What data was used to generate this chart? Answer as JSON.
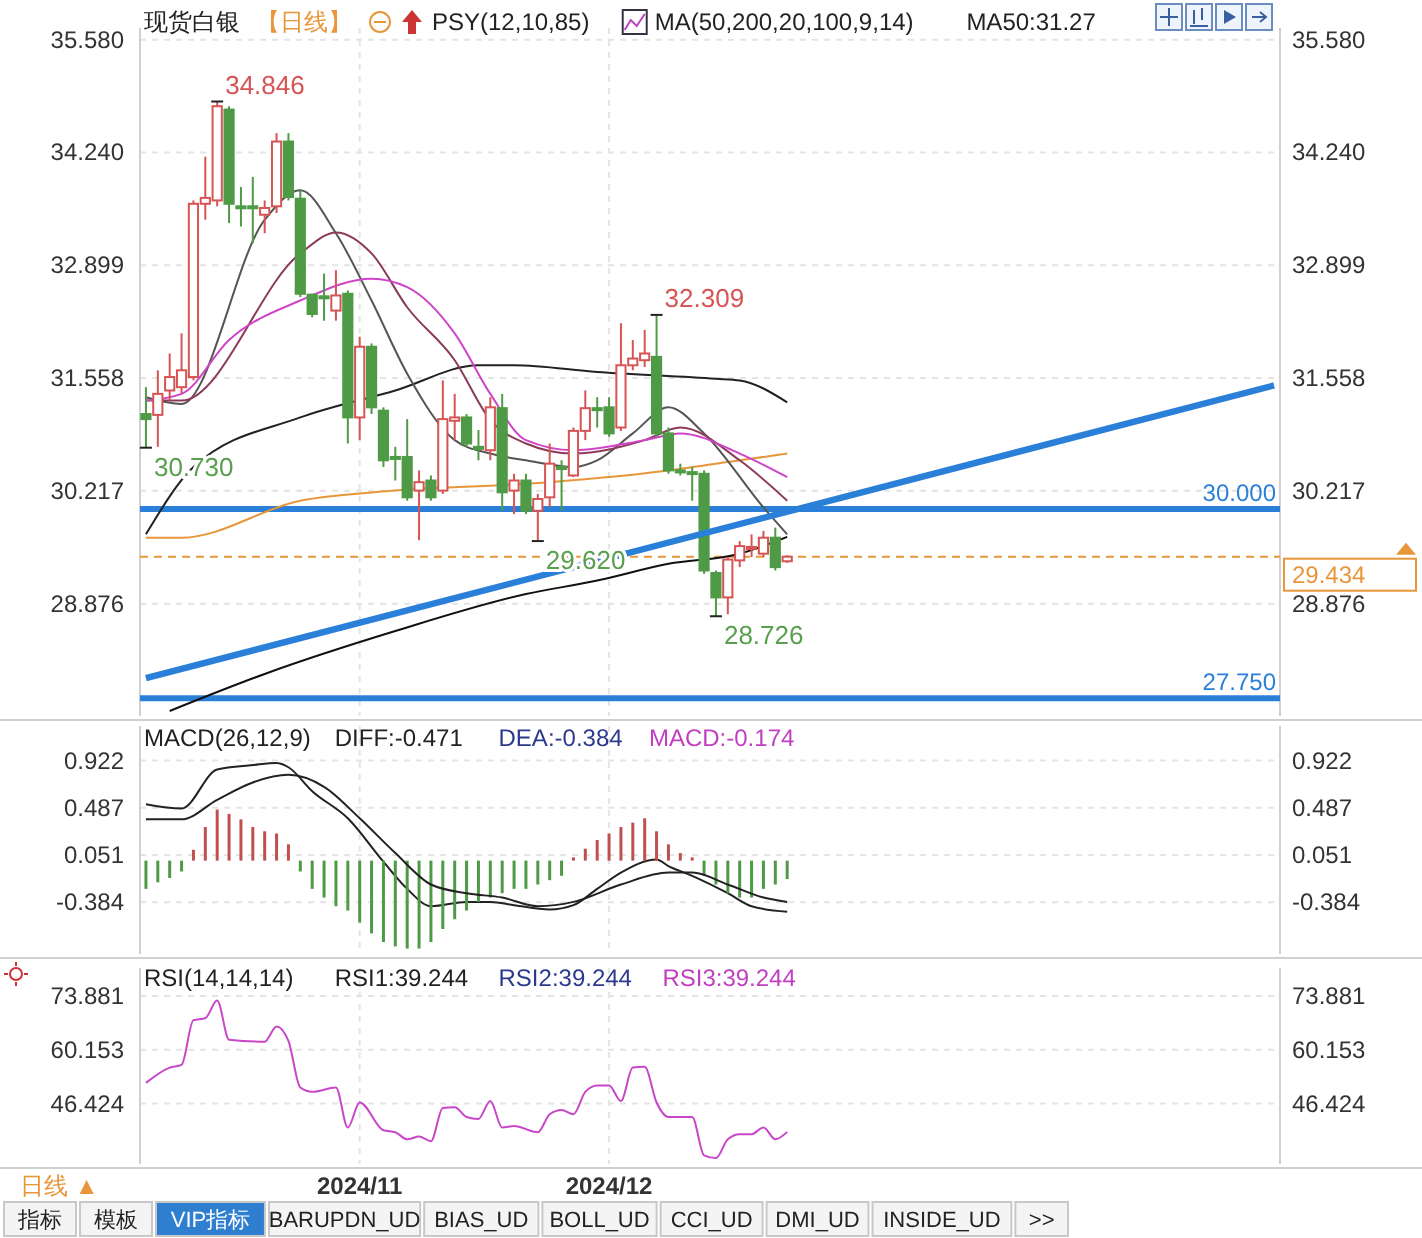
{
  "chart_data": [
    {
      "type": "candlestick",
      "title": "现货白银",
      "subtitle": "【日线】",
      "annotations": [
        "PSY(12,10,85)",
        "MA(50,200,20,100,9,14)",
        "MA50:31.27",
        "34.846",
        "32.309",
        "30.730",
        "29.620",
        "28.726"
      ],
      "categories": [
        null,
        null,
        null,
        null,
        null,
        null,
        null,
        null,
        null,
        null,
        null,
        null,
        null,
        null,
        null,
        null,
        null,
        null,
        "2024/11",
        null,
        null,
        null,
        null,
        null,
        null,
        null,
        null,
        null,
        null,
        null,
        null,
        null,
        null,
        null,
        null,
        null,
        null,
        null,
        null,
        "2024/12",
        null,
        null,
        null,
        null,
        null,
        null,
        null,
        null,
        null,
        null,
        null,
        null,
        null,
        null,
        null,
        null,
        null,
        null,
        null,
        null,
        null,
        null,
        null,
        null,
        null,
        null,
        null,
        null,
        null,
        null,
        null,
        null,
        null,
        null,
        null,
        null,
        null,
        null,
        null,
        null,
        null,
        null,
        null,
        null,
        null,
        null,
        null,
        null,
        null,
        null,
        null,
        null,
        null,
        null,
        null,
        null
      ],
      "ohlc": [
        [
          31.13,
          31.45,
          30.73,
          31.07
        ],
        [
          31.12,
          31.65,
          30.74,
          31.37
        ],
        [
          31.41,
          31.85,
          31.29,
          31.57
        ],
        [
          31.45,
          32.09,
          31.37,
          31.65
        ],
        [
          31.57,
          33.67,
          31.53,
          33.63
        ],
        [
          33.63,
          34.19,
          33.44,
          33.7
        ],
        [
          33.67,
          34.846,
          33.6,
          34.79
        ],
        [
          34.75,
          34.79,
          33.4,
          33.63
        ],
        [
          33.6,
          33.83,
          33.36,
          33.58
        ],
        [
          33.6,
          33.95,
          33.16,
          33.59
        ],
        [
          33.5,
          33.67,
          33.28,
          33.58
        ],
        [
          33.6,
          34.47,
          33.52,
          34.37
        ],
        [
          34.37,
          34.47,
          33.67,
          33.71
        ],
        [
          33.69,
          33.79,
          32.52,
          32.56
        ],
        [
          32.55,
          32.56,
          32.28,
          32.32
        ],
        [
          32.53,
          32.8,
          32.24,
          32.51
        ],
        [
          32.36,
          32.84,
          32.24,
          32.54
        ],
        [
          32.56,
          32.6,
          30.78,
          31.09
        ],
        [
          31.09,
          32.05,
          30.82,
          31.93
        ],
        [
          31.93,
          31.97,
          31.13,
          31.21
        ],
        [
          31.17,
          31.21,
          30.5,
          30.58
        ],
        [
          30.62,
          30.74,
          30.34,
          30.6
        ],
        [
          30.62,
          31.07,
          30.1,
          30.14
        ],
        [
          30.22,
          30.46,
          29.63,
          30.32
        ],
        [
          30.34,
          30.4,
          30.1,
          30.14
        ],
        [
          30.22,
          31.53,
          30.18,
          31.07
        ],
        [
          31.05,
          31.37,
          30.82,
          31.09
        ],
        [
          31.09,
          31.13,
          30.74,
          30.78
        ],
        [
          30.74,
          30.94,
          30.58,
          30.72
        ],
        [
          30.7,
          31.33,
          30.58,
          31.21
        ],
        [
          31.2,
          31.37,
          29.98,
          30.2
        ],
        [
          30.22,
          30.42,
          29.94,
          30.34
        ],
        [
          30.34,
          30.42,
          29.94,
          29.98
        ],
        [
          29.98,
          30.18,
          29.62,
          30.12
        ],
        [
          30.14,
          30.78,
          30.02,
          30.54
        ],
        [
          30.5,
          30.58,
          29.98,
          30.48
        ],
        [
          30.4,
          30.97,
          30.38,
          30.93
        ],
        [
          30.93,
          31.41,
          30.82,
          31.2
        ],
        [
          31.2,
          31.33,
          30.97,
          31.19
        ],
        [
          31.21,
          31.33,
          30.86,
          30.9
        ],
        [
          30.97,
          32.21,
          30.93,
          31.71
        ],
        [
          31.71,
          32.01,
          31.65,
          31.79
        ],
        [
          31.77,
          32.13,
          31.69,
          31.85
        ],
        [
          31.81,
          32.309,
          30.86,
          30.9
        ],
        [
          30.9,
          30.97,
          30.42,
          30.46
        ],
        [
          30.46,
          30.54,
          30.4,
          30.45
        ],
        [
          30.44,
          30.5,
          30.1,
          30.42
        ],
        [
          30.42,
          30.46,
          29.23,
          29.27
        ],
        [
          29.24,
          29.27,
          28.726,
          28.95
        ],
        [
          28.95,
          29.43,
          28.75,
          29.4
        ],
        [
          29.39,
          29.62,
          29.31,
          29.56
        ],
        [
          29.54,
          29.7,
          29.43,
          29.55
        ],
        [
          29.47,
          29.74,
          29.43,
          29.66
        ],
        [
          29.66,
          29.78,
          29.27,
          29.31
        ],
        [
          29.38,
          29.45,
          29.36,
          29.434
        ],
        null,
        null,
        null,
        null,
        null,
        null,
        null,
        null,
        null,
        null,
        null,
        null,
        null,
        null,
        null,
        null,
        null,
        null,
        null,
        null,
        null,
        null,
        null,
        null,
        null,
        null,
        null,
        null,
        null,
        null,
        null,
        null,
        null,
        null,
        null,
        null,
        null,
        null,
        null,
        null,
        null
      ],
      "colors": [
        "#4f9a46",
        "#d65454",
        "#d65454",
        "#d65454",
        "#d65454",
        "#d65454",
        "#d65454",
        "#4f9a46",
        "#4f9a46",
        "#4f9a46",
        "#d65454",
        "#d65454",
        "#4f9a46",
        "#4f9a46",
        "#4f9a46",
        "#4f9a46",
        "#d65454",
        "#4f9a46",
        "#d65454",
        "#4f9a46",
        "#4f9a46",
        "#4f9a46",
        "#4f9a46",
        "#d65454",
        "#4f9a46",
        "#d65454",
        "#d65454",
        "#4f9a46",
        "#4f9a46",
        "#d65454",
        "#4f9a46",
        "#d65454",
        "#4f9a46",
        "#d65454",
        "#d65454",
        "#4f9a46",
        "#d65454",
        "#d65454",
        "#4f9a46",
        "#4f9a46",
        "#d65454",
        "#d65454",
        "#d65454",
        "#4f9a46",
        "#4f9a46",
        "#4f9a46",
        "#4f9a46",
        "#4f9a46",
        "#4f9a46",
        "#d65454",
        "#d65454",
        "#d65454",
        "#d65454",
        "#4f9a46",
        "#d65454",
        null,
        null,
        null,
        null,
        null,
        null,
        null,
        null,
        null,
        null,
        null,
        null,
        null,
        null,
        null,
        null,
        null,
        null,
        null,
        null,
        null,
        null,
        null,
        null,
        null,
        null,
        null,
        null,
        null,
        null,
        null,
        null,
        null,
        null,
        null,
        null,
        null,
        null,
        null,
        null,
        null
      ],
      "series": [
        {
          "type": "line",
          "color": "#222222",
          "values": [
            29.7,
            null,
            null,
            null,
            30.5,
            null,
            null,
            null,
            null,
            null,
            null,
            null,
            null,
            31.09,
            null,
            null,
            null,
            null,
            null,
            null,
            null,
            31.41,
            null,
            null,
            null,
            null,
            null,
            null,
            31.71,
            null,
            null,
            31.71,
            null,
            null,
            null,
            null,
            null,
            null,
            31.63,
            null,
            null,
            null,
            null,
            null,
            null,
            null,
            null,
            null,
            31.55,
            null,
            31.53,
            null,
            null,
            null,
            31.27,
            null,
            null,
            null,
            null,
            null,
            null,
            null,
            null,
            null,
            null,
            null,
            null,
            null,
            null,
            null,
            null,
            null,
            null,
            null,
            null,
            null,
            null,
            null,
            null,
            null,
            null,
            null,
            null,
            null,
            null,
            null,
            null,
            null,
            null,
            null,
            null,
            null,
            null,
            null,
            null,
            null
          ]
        },
        {
          "type": "line",
          "color": "#111111",
          "values": [
            null,
            null,
            27.6,
            null,
            null,
            null,
            null,
            null,
            null,
            null,
            28.04,
            null,
            null,
            null,
            null,
            null,
            null,
            null,
            null,
            null,
            null,
            28.55,
            null,
            null,
            null,
            null,
            null,
            null,
            null,
            null,
            null,
            null,
            28.99,
            null,
            null,
            null,
            null,
            null,
            29.15,
            null,
            null,
            null,
            null,
            null,
            29.35,
            null,
            null,
            null,
            null,
            null,
            29.47,
            null,
            null,
            null,
            29.67,
            null,
            null,
            null,
            null,
            null,
            null,
            null,
            null,
            null,
            null,
            null,
            null,
            null,
            null,
            null,
            null,
            null,
            null,
            null,
            null,
            null,
            null,
            null,
            null,
            null,
            null,
            null,
            null,
            null,
            null,
            null,
            null,
            null,
            null,
            null,
            null,
            null,
            null,
            null,
            null,
            null
          ]
        },
        {
          "type": "line",
          "color": "#e8963a",
          "values": [
            29.66,
            null,
            null,
            29.66,
            null,
            null,
            null,
            null,
            null,
            null,
            null,
            null,
            null,
            30.1,
            null,
            null,
            null,
            null,
            null,
            null,
            null,
            30.22,
            null,
            null,
            null,
            null,
            null,
            null,
            null,
            null,
            null,
            null,
            30.3,
            null,
            null,
            null,
            null,
            null,
            null,
            null,
            null,
            null,
            null,
            null,
            30.46,
            null,
            null,
            null,
            null,
            null,
            30.58,
            null,
            null,
            null,
            30.66,
            null,
            null,
            null,
            null,
            null,
            null,
            null,
            null,
            null,
            null,
            null,
            null,
            null,
            null,
            null,
            null,
            null,
            null,
            null,
            null,
            null,
            null,
            null,
            null,
            null,
            null,
            null,
            null,
            null,
            null,
            null,
            null,
            null,
            null,
            null,
            null,
            null,
            null,
            null,
            null,
            null
          ]
        },
        {
          "type": "line",
          "color": "#555555",
          "values": [
            31.33,
            null,
            null,
            31.25,
            null,
            null,
            null,
            null,
            null,
            null,
            33.44,
            null,
            null,
            33.79,
            null,
            null,
            33.28,
            null,
            null,
            32.48,
            null,
            null,
            31.61,
            null,
            null,
            null,
            30.82,
            null,
            null,
            30.66,
            null,
            null,
            30.58,
            null,
            null,
            null,
            30.5,
            null,
            30.58,
            null,
            null,
            30.9,
            null,
            null,
            31.21,
            null,
            null,
            30.9,
            null,
            null,
            null,
            null,
            30.02,
            null,
            29.7,
            null,
            null,
            null,
            null,
            null,
            null,
            null,
            null,
            null,
            null,
            null,
            null,
            null,
            null,
            null,
            null,
            null,
            null,
            null,
            null,
            null,
            null,
            null,
            null,
            null,
            null,
            null,
            null,
            null,
            null,
            null,
            null,
            null,
            null,
            null,
            null,
            null,
            null,
            null,
            null,
            null
          ]
        },
        {
          "type": "line",
          "color": "#8b3a5a",
          "values": [
            31.29,
            null,
            null,
            31.29,
            null,
            null,
            null,
            null,
            null,
            null,
            null,
            null,
            null,
            33.04,
            null,
            null,
            33.29,
            null,
            null,
            33.04,
            null,
            null,
            32.4,
            null,
            null,
            null,
            31.77,
            null,
            null,
            31.06,
            null,
            null,
            30.78,
            null,
            null,
            null,
            30.66,
            null,
            null,
            null,
            null,
            null,
            30.82,
            null,
            null,
            30.97,
            null,
            null,
            null,
            null,
            30.58,
            null,
            null,
            null,
            30.1,
            null,
            null,
            null,
            null,
            null,
            null,
            null,
            null,
            null,
            null,
            null,
            null,
            null,
            null,
            null,
            null,
            null,
            null,
            null,
            null,
            null,
            null,
            null,
            null,
            null,
            null,
            null,
            null,
            null,
            null,
            null,
            null,
            null,
            null,
            null,
            null,
            null,
            null,
            null,
            null,
            null
          ]
        },
        {
          "type": "line",
          "color": "#d045c8",
          "values": [
            31.29,
            null,
            null,
            31.37,
            null,
            null,
            null,
            32.01,
            null,
            null,
            null,
            null,
            null,
            32.48,
            null,
            null,
            null,
            null,
            null,
            32.74,
            null,
            null,
            32.64,
            null,
            null,
            null,
            32.09,
            null,
            null,
            31.37,
            null,
            null,
            30.82,
            null,
            null,
            null,
            30.7,
            null,
            null,
            null,
            null,
            null,
            30.82,
            null,
            null,
            30.9,
            null,
            null,
            null,
            null,
            30.66,
            null,
            null,
            null,
            30.38,
            null,
            null,
            null,
            null,
            null,
            null,
            null,
            null,
            null,
            null,
            null,
            null,
            null,
            null,
            null,
            null,
            null,
            null,
            null,
            null,
            null,
            null,
            null,
            null,
            null,
            null,
            null,
            null,
            null,
            null,
            null,
            null,
            null,
            null,
            null,
            null,
            null,
            null,
            null,
            null,
            null
          ]
        },
        {
          "type": "line",
          "color": "#2a7fd8",
          "values": [
            27.99,
            null,
            null,
            null,
            null,
            null,
            null,
            null,
            null,
            null,
            null,
            null,
            null,
            null,
            null,
            null,
            null,
            null,
            null,
            null,
            null,
            null,
            null,
            null,
            null,
            null,
            null,
            null,
            null,
            null,
            null,
            null,
            null,
            null,
            null,
            null,
            null,
            null,
            null,
            null,
            null,
            null,
            null,
            null,
            null,
            null,
            null,
            null,
            null,
            null,
            null,
            null,
            null,
            null,
            null,
            null,
            null,
            null,
            null,
            null,
            null,
            null,
            null,
            null,
            null,
            null,
            null,
            null,
            null,
            null,
            null,
            null,
            null,
            null,
            null,
            null,
            null,
            null,
            null,
            null,
            null,
            null,
            null,
            null,
            null,
            null,
            null,
            null,
            null,
            null,
            null,
            null,
            null,
            null,
            null,
            31.47
          ]
        }
      ],
      "ref_lines": [
        {
          "axis": "y",
          "value": 30,
          "label": "30.000",
          "color": "#2a7fd8"
        },
        {
          "axis": "y",
          "value": 27.75,
          "label": "27.750",
          "color": "#2a7fd8"
        },
        {
          "axis": "y",
          "value": 29.434,
          "label": "29.434",
          "color": "#e8963a",
          "line_style": "dashed"
        }
      ],
      "ylim": [
        27.54,
        35.72
      ],
      "yticks": [
        {
          "value": 28.876,
          "label": "28.876"
        },
        {
          "value": 30.217,
          "label": "30.217"
        },
        {
          "value": 31.558,
          "label": "31.558"
        },
        {
          "value": 32.899,
          "label": "32.899"
        },
        {
          "value": 34.24,
          "label": "34.240"
        },
        {
          "value": 35.58,
          "label": "35.580"
        }
      ],
      "y2lim": [
        27.54,
        35.72
      ],
      "y2ticks": [
        {
          "value": 28.876,
          "label": "28.876"
        },
        {
          "value": 30.217,
          "label": "30.217"
        },
        {
          "value": 31.558,
          "label": "31.558"
        },
        {
          "value": 32.899,
          "label": "32.899"
        },
        {
          "value": 34.24,
          "label": "34.240"
        },
        {
          "value": 35.58,
          "label": "35.580"
        }
      ],
      "grid": true,
      "tick_labels": "y"
    },
    {
      "type": "bar",
      "title": "MACD(26,12,9)",
      "annotations": [
        "DIFF:-0.471",
        "DEA:-0.384",
        "MACD:-0.174"
      ],
      "categories": [
        null,
        null,
        null,
        null,
        null,
        null,
        null,
        null,
        null,
        null,
        null,
        null,
        null,
        null,
        null,
        null,
        null,
        null,
        "2024/11",
        null,
        null,
        null,
        null,
        null,
        null,
        null,
        null,
        null,
        null,
        null,
        null,
        null,
        null,
        null,
        null,
        null,
        null,
        null,
        null,
        "2024/12",
        null,
        null,
        null,
        null,
        null,
        null,
        null,
        null,
        null,
        null,
        null,
        null,
        null,
        null,
        null,
        null,
        null,
        null,
        null,
        null,
        null,
        null,
        null,
        null,
        null,
        null,
        null,
        null,
        null,
        null,
        null,
        null,
        null,
        null,
        null,
        null,
        null,
        null,
        null,
        null,
        null,
        null,
        null,
        null,
        null,
        null,
        null,
        null,
        null,
        null,
        null,
        null,
        null,
        null,
        null,
        null
      ],
      "values": [
        -0.26,
        -0.2,
        -0.16,
        -0.1,
        0.1,
        0.31,
        0.47,
        0.43,
        0.38,
        0.31,
        0.27,
        0.25,
        0.15,
        -0.1,
        -0.26,
        -0.34,
        -0.42,
        -0.46,
        -0.57,
        -0.67,
        -0.75,
        -0.79,
        -0.81,
        -0.81,
        -0.75,
        -0.63,
        -0.54,
        -0.46,
        -0.38,
        -0.34,
        -0.3,
        -0.26,
        -0.26,
        -0.22,
        -0.18,
        -0.14,
        0.03,
        0.11,
        0.19,
        0.25,
        0.31,
        0.35,
        0.39,
        0.27,
        0.15,
        0.07,
        0.03,
        -0.14,
        -0.22,
        -0.3,
        -0.34,
        -0.34,
        -0.26,
        -0.22,
        -0.17,
        null,
        null,
        null,
        null,
        null,
        null,
        null,
        null,
        null,
        null,
        null,
        null,
        null,
        null,
        null,
        null,
        null,
        null,
        null,
        null,
        null,
        null,
        null,
        null,
        null,
        null,
        null,
        null,
        null,
        null,
        null,
        null,
        null,
        null,
        null,
        null,
        null,
        null,
        null,
        null,
        null
      ],
      "colors": [
        "#4f9a46",
        "#4f9a46",
        "#4f9a46",
        "#4f9a46",
        "#c05050",
        "#c05050",
        "#c05050",
        "#c05050",
        "#c05050",
        "#c05050",
        "#c05050",
        "#c05050",
        "#c05050",
        "#4f9a46",
        "#4f9a46",
        "#4f9a46",
        "#4f9a46",
        "#4f9a46",
        "#4f9a46",
        "#4f9a46",
        "#4f9a46",
        "#4f9a46",
        "#4f9a46",
        "#4f9a46",
        "#4f9a46",
        "#4f9a46",
        "#4f9a46",
        "#4f9a46",
        "#4f9a46",
        "#4f9a46",
        "#4f9a46",
        "#4f9a46",
        "#4f9a46",
        "#4f9a46",
        "#4f9a46",
        "#4f9a46",
        "#c05050",
        "#c05050",
        "#c05050",
        "#c05050",
        "#c05050",
        "#c05050",
        "#c05050",
        "#c05050",
        "#c05050",
        "#c05050",
        "#c05050",
        "#4f9a46",
        "#4f9a46",
        "#4f9a46",
        "#4f9a46",
        "#4f9a46",
        "#4f9a46",
        "#4f9a46",
        "#4f9a46",
        null,
        null,
        null,
        null,
        null,
        null,
        null,
        null,
        null,
        null,
        null,
        null,
        null,
        null,
        null,
        null,
        null,
        null,
        null,
        null,
        null,
        null,
        null,
        null,
        null,
        null,
        null,
        null,
        null,
        null,
        null,
        null,
        null,
        null,
        null,
        null,
        null,
        null,
        null,
        null,
        null
      ],
      "series": [
        {
          "type": "line",
          "color": "#222222",
          "values": [
            0.52,
            null,
            null,
            0.48,
            null,
            null,
            0.84,
            null,
            null,
            0.88,
            null,
            0.9,
            0.86,
            null,
            0.64,
            null,
            null,
            0.39,
            null,
            null,
            -0.01,
            null,
            -0.26,
            null,
            -0.42,
            null,
            null,
            -0.38,
            null,
            -0.38,
            null,
            -0.41,
            null,
            null,
            -0.45,
            null,
            -0.41,
            null,
            -0.26,
            null,
            -0.11,
            null,
            null,
            0.01,
            -0.05,
            null,
            -0.14,
            null,
            null,
            -0.3,
            null,
            -0.42,
            null,
            null,
            -0.47,
            null,
            null,
            null,
            null,
            null,
            null,
            null,
            null,
            null,
            null,
            null,
            null,
            null,
            null,
            null,
            null,
            null,
            null,
            null,
            null,
            null,
            null,
            null,
            null,
            null,
            null,
            null,
            null,
            null,
            null,
            null,
            null,
            null,
            null,
            null,
            null,
            null,
            null,
            null,
            null,
            null
          ]
        },
        {
          "type": "line",
          "color": "#222222",
          "values": [
            0.38,
            null,
            null,
            0.38,
            null,
            null,
            0.56,
            null,
            null,
            0.72,
            null,
            null,
            0.79,
            null,
            null,
            0.68,
            null,
            null,
            0.39,
            null,
            null,
            0.07,
            null,
            null,
            -0.22,
            null,
            null,
            -0.3,
            null,
            null,
            -0.34,
            null,
            null,
            -0.42,
            null,
            null,
            -0.38,
            null,
            null,
            null,
            -0.22,
            null,
            null,
            null,
            -0.11,
            null,
            -0.11,
            null,
            null,
            -0.22,
            null,
            null,
            -0.34,
            null,
            -0.38,
            null,
            null,
            null,
            null,
            null,
            null,
            null,
            null,
            null,
            null,
            null,
            null,
            null,
            null,
            null,
            null,
            null,
            null,
            null,
            null,
            null,
            null,
            null,
            null,
            null,
            null,
            null,
            null,
            null,
            null,
            null,
            null,
            null,
            null,
            null,
            null,
            null,
            null,
            null,
            null,
            null
          ]
        }
      ],
      "ylim": [
        -0.86,
        1.24
      ],
      "yticks": [
        -0.384,
        0.051,
        0.487,
        0.922
      ],
      "y2lim": [
        -0.86,
        1.24
      ],
      "y2ticks": [
        -0.384,
        0.051,
        0.487,
        0.922
      ],
      "grid": true,
      "tick_labels": "y"
    },
    {
      "type": "line",
      "title": "RSI(14,14,14)",
      "annotations": [
        "RSI1:39.244",
        "RSI2:39.244",
        "RSI3:39.244"
      ],
      "categories": [
        null,
        null,
        null,
        null,
        null,
        null,
        null,
        null,
        null,
        null,
        null,
        null,
        null,
        null,
        null,
        null,
        null,
        null,
        "2024/11",
        null,
        null,
        null,
        null,
        null,
        null,
        null,
        null,
        null,
        null,
        null,
        null,
        null,
        null,
        null,
        null,
        null,
        null,
        null,
        null,
        "2024/12",
        null,
        null,
        null,
        null,
        null,
        null,
        null,
        null,
        null,
        null,
        null,
        null,
        null,
        null,
        null,
        null,
        null,
        null,
        null,
        null,
        null,
        null,
        null,
        null,
        null,
        null,
        null,
        null,
        null,
        null,
        null,
        null,
        null,
        null,
        null,
        null,
        null,
        null,
        null,
        null,
        null,
        null,
        null,
        null,
        null,
        null,
        null,
        null,
        null,
        null,
        null,
        null,
        null,
        null,
        null,
        null
      ],
      "series": [
        {
          "color": "#c846c8",
          "values": [
            51.7,
            null,
            55.6,
            56.3,
            67.7,
            68.2,
            72.7,
            62.7,
            null,
            null,
            62.2,
            66.1,
            62.4,
            50.5,
            49.4,
            null,
            50.5,
            40.3,
            46.7,
            null,
            39.6,
            39.1,
            37.3,
            38.0,
            36.8,
            45.3,
            45.5,
            43.0,
            42.5,
            47.1,
            40.3,
            40.7,
            null,
            39.1,
            43.7,
            44.8,
            43.7,
            49.4,
            51.0,
            51.0,
            47.1,
            55.6,
            55.8,
            46.7,
            43.0,
            null,
            43.0,
            33.2,
            32.5,
            37.3,
            38.6,
            38.6,
            40.3,
            37.3,
            39.2,
            null,
            null,
            null,
            null,
            null,
            null,
            null,
            null,
            null,
            null,
            null,
            null,
            null,
            null,
            null,
            null,
            null,
            null,
            null,
            null,
            null,
            null,
            null,
            null,
            null,
            null,
            null,
            null,
            null,
            null,
            null,
            null,
            null,
            null,
            null,
            null,
            null,
            null,
            null,
            null,
            null
          ]
        }
      ],
      "ylim": [
        31,
        81
      ],
      "yticks": [
        46.424,
        60.153,
        73.881
      ],
      "y2lim": [
        31,
        81
      ],
      "y2ticks": [
        46.424,
        60.153,
        73.881
      ],
      "grid": true
    },
    {
      "type": "other",
      "annotations": [
        "日线 ▲",
        "指标",
        "模板",
        "VIP指标",
        "BARUPDN_UD",
        "BIAS_UD",
        "BOLL_UD",
        "CCI_UD",
        "DMI_UD",
        "INSIDE_UD",
        ">>"
      ]
    }
  ]
}
